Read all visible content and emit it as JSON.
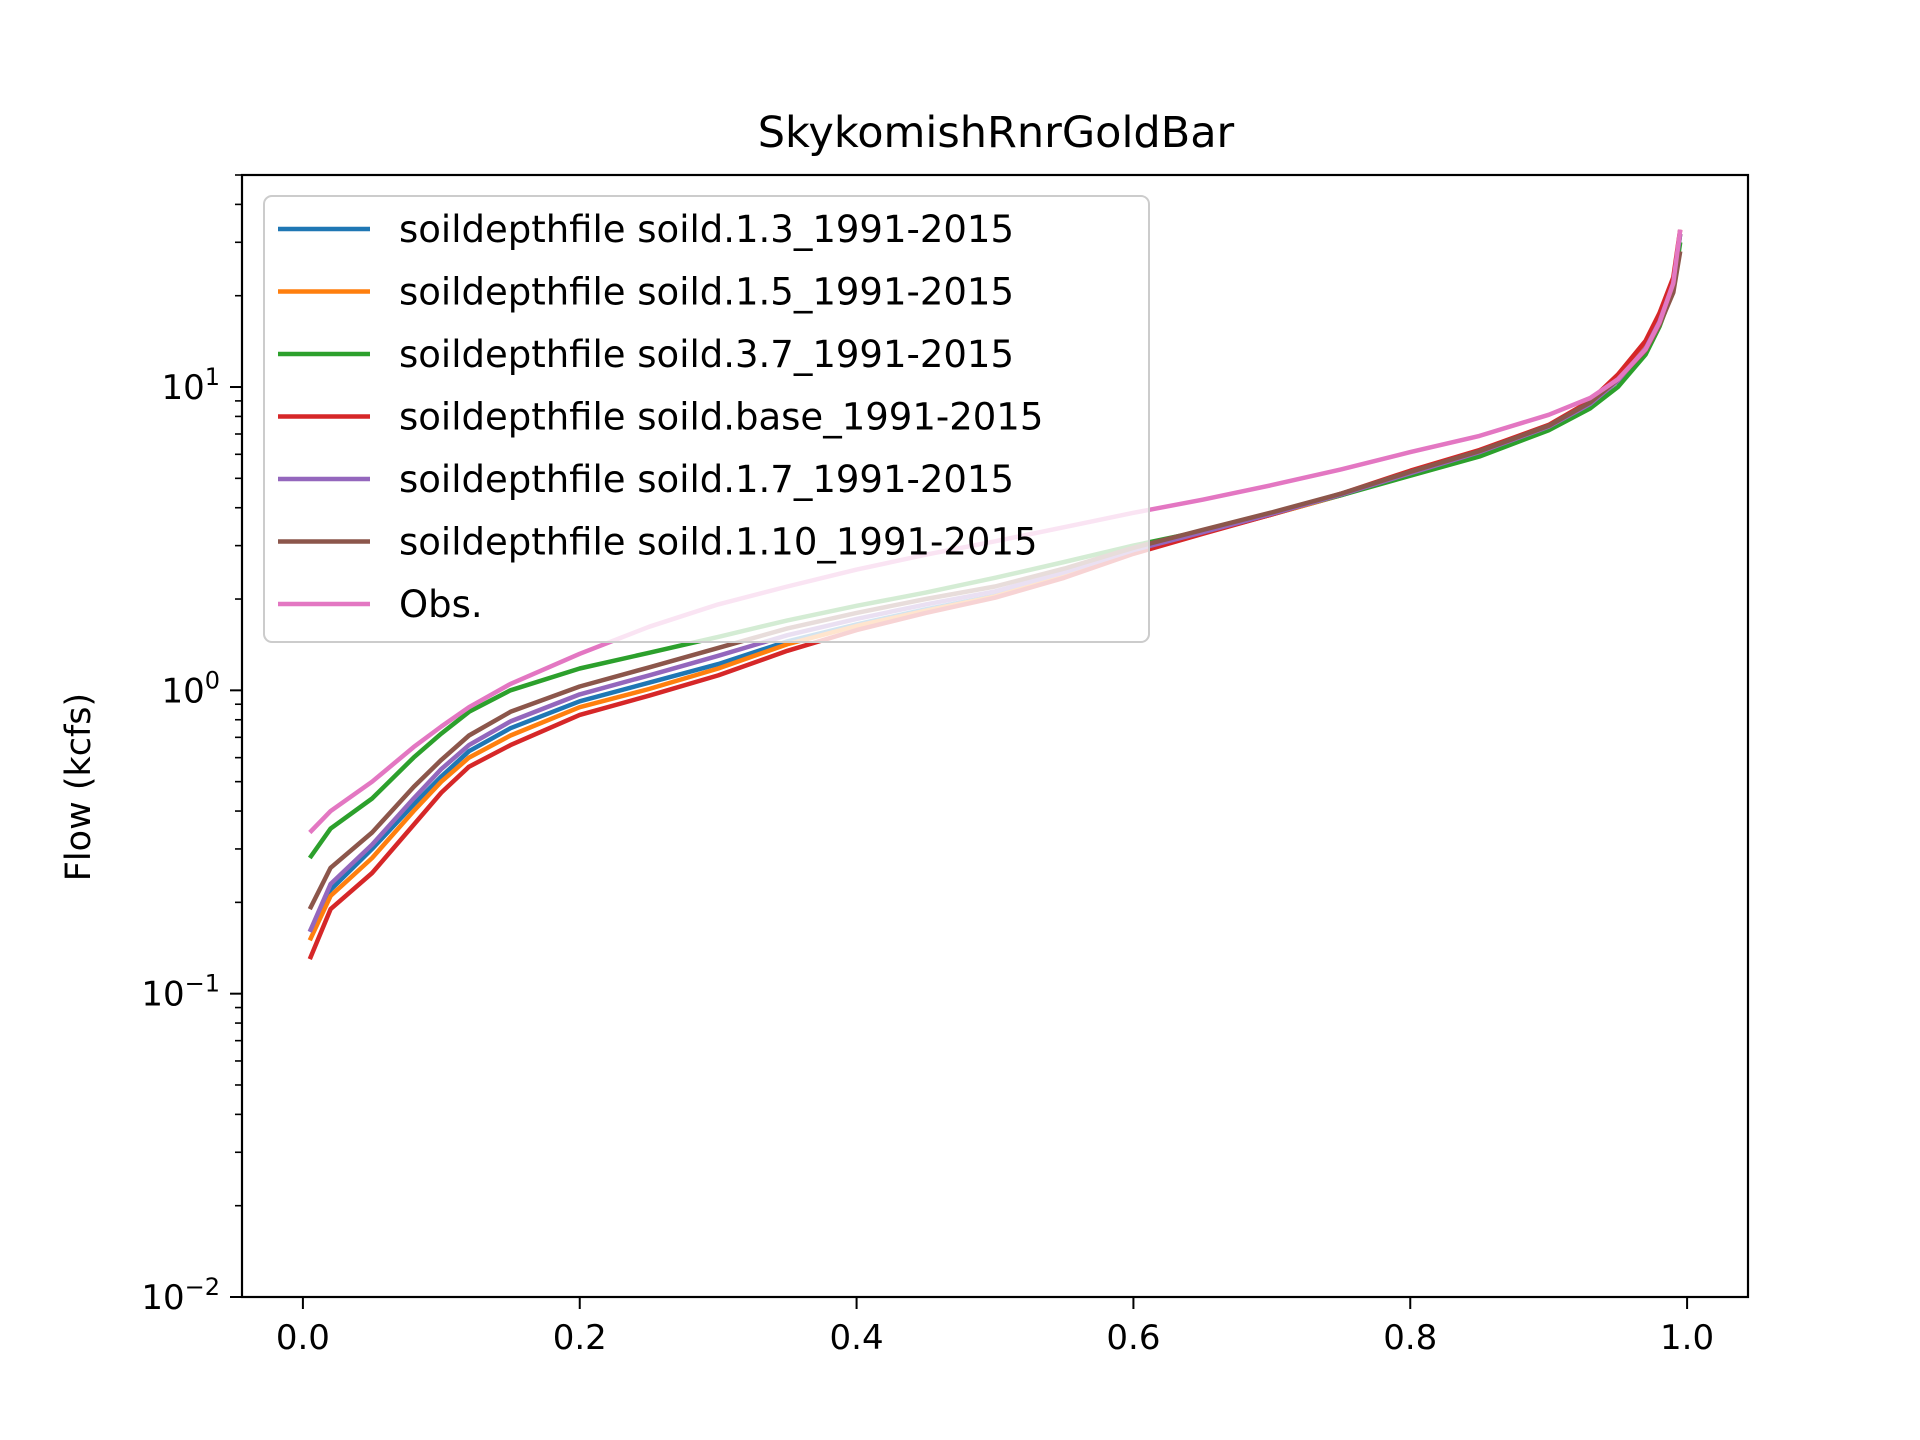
{
  "chart_data": {
    "type": "line",
    "title": "SkykomishRnrGoldBar",
    "xlabel": "",
    "ylabel": "Flow (kcfs)",
    "y_scale": "log",
    "xlim": [
      -0.044,
      1.044
    ],
    "ylim": [
      0.01,
      50
    ],
    "x_ticks": [
      {
        "value": 0.0,
        "label": "0.0"
      },
      {
        "value": 0.2,
        "label": "0.2"
      },
      {
        "value": 0.4,
        "label": "0.4"
      },
      {
        "value": 0.6,
        "label": "0.6"
      },
      {
        "value": 0.8,
        "label": "0.8"
      },
      {
        "value": 1.0,
        "label": "1.0"
      }
    ],
    "y_ticks": [
      {
        "value": 0.01,
        "base": "10",
        "exp": "−2"
      },
      {
        "value": 0.1,
        "base": "10",
        "exp": "−1"
      },
      {
        "value": 1,
        "base": "10",
        "exp": "0"
      },
      {
        "value": 10,
        "base": "10",
        "exp": "1"
      }
    ],
    "grid": false,
    "legend_position": "top-left",
    "x": [
      0.005,
      0.02,
      0.05,
      0.08,
      0.1,
      0.12,
      0.15,
      0.2,
      0.25,
      0.3,
      0.35,
      0.4,
      0.45,
      0.5,
      0.55,
      0.6,
      0.65,
      0.7,
      0.75,
      0.8,
      0.85,
      0.9,
      0.93,
      0.95,
      0.97,
      0.98,
      0.99,
      0.995
    ],
    "series": [
      {
        "name": "soildepthfile soild.1.3_1991-2015",
        "color": "#1f77b4",
        "values": [
          0.16,
          0.22,
          0.3,
          0.42,
          0.52,
          0.63,
          0.75,
          0.92,
          1.06,
          1.22,
          1.45,
          1.65,
          1.85,
          2.05,
          2.4,
          2.85,
          3.3,
          3.8,
          4.4,
          5.2,
          6.1,
          7.4,
          8.8,
          10.5,
          13.5,
          16.5,
          22,
          32
        ]
      },
      {
        "name": "soildepthfile soild.1.5_1991-2015",
        "color": "#ff7f0e",
        "values": [
          0.15,
          0.21,
          0.28,
          0.4,
          0.5,
          0.6,
          0.71,
          0.88,
          1.01,
          1.18,
          1.42,
          1.63,
          1.83,
          2.04,
          2.38,
          2.84,
          3.3,
          3.8,
          4.4,
          5.2,
          6.1,
          7.4,
          8.8,
          10.5,
          13.5,
          16.5,
          22,
          32
        ]
      },
      {
        "name": "soildepthfile soild.3.7_1991-2015",
        "color": "#2ca02c",
        "values": [
          0.28,
          0.35,
          0.44,
          0.6,
          0.72,
          0.85,
          1.0,
          1.18,
          1.33,
          1.5,
          1.7,
          1.9,
          2.1,
          2.35,
          2.65,
          3.0,
          3.35,
          3.85,
          4.4,
          5.1,
          5.9,
          7.2,
          8.5,
          10.0,
          12.8,
          15.8,
          21,
          30
        ]
      },
      {
        "name": "soildepthfile soild.base_1991-2015",
        "color": "#d62728",
        "values": [
          0.13,
          0.19,
          0.25,
          0.36,
          0.46,
          0.56,
          0.66,
          0.83,
          0.96,
          1.12,
          1.35,
          1.58,
          1.8,
          2.02,
          2.35,
          2.82,
          3.28,
          3.8,
          4.45,
          5.3,
          6.2,
          7.5,
          9.0,
          11.0,
          14.2,
          17.5,
          23,
          33
        ]
      },
      {
        "name": "soildepthfile soild.1.7_1991-2015",
        "color": "#9467bd",
        "values": [
          0.16,
          0.23,
          0.31,
          0.44,
          0.55,
          0.66,
          0.79,
          0.97,
          1.12,
          1.3,
          1.52,
          1.72,
          1.92,
          2.12,
          2.45,
          2.9,
          3.32,
          3.82,
          4.42,
          5.2,
          6.1,
          7.4,
          8.8,
          10.5,
          13.4,
          16.4,
          22,
          32
        ]
      },
      {
        "name": "soildepthfile soild.1.10_1991-2015",
        "color": "#8c564b",
        "values": [
          0.19,
          0.26,
          0.34,
          0.48,
          0.59,
          0.71,
          0.85,
          1.03,
          1.19,
          1.38,
          1.6,
          1.8,
          2.0,
          2.2,
          2.52,
          2.95,
          3.38,
          3.86,
          4.45,
          5.25,
          6.15,
          7.45,
          8.9,
          10.6,
          13.2,
          16.0,
          20.5,
          28
        ]
      },
      {
        "name": "Obs.",
        "color": "#e377c2",
        "values": [
          0.34,
          0.4,
          0.5,
          0.65,
          0.76,
          0.88,
          1.05,
          1.32,
          1.62,
          1.92,
          2.2,
          2.5,
          2.8,
          3.1,
          3.45,
          3.85,
          4.25,
          4.75,
          5.35,
          6.1,
          6.9,
          8.1,
          9.2,
          10.6,
          13.3,
          16.3,
          22,
          33
        ]
      }
    ]
  }
}
